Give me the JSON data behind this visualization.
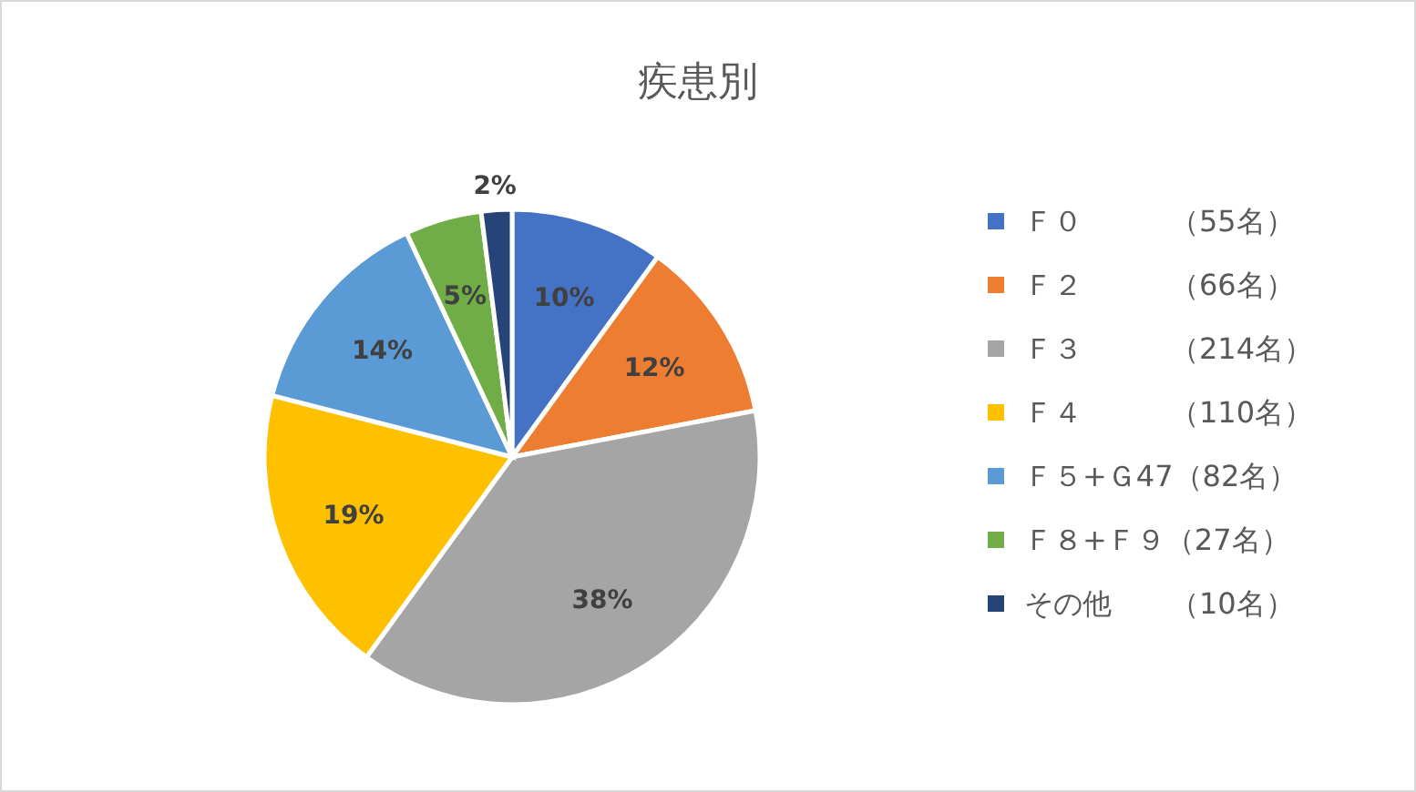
{
  "chart_data": {
    "type": "pie",
    "title": "疾患別",
    "categories": [
      "Ｆ０　　　（55名）",
      "Ｆ２　　　（66名）",
      "Ｆ３　　　（214名）",
      "Ｆ４　　　（110名）",
      "Ｆ５+Ｇ47（82名）",
      "Ｆ８+Ｆ９（27名）",
      "その他　　（10名）"
    ],
    "values": [
      10,
      12,
      38,
      19,
      14,
      5,
      2
    ],
    "value_labels": [
      "10%",
      "12%",
      "38%",
      "19%",
      "14%",
      "5%",
      "2%"
    ],
    "colors": [
      "#4472c4",
      "#ed7d31",
      "#a5a5a5",
      "#ffc000",
      "#5b9bd5",
      "#70ad47",
      "#264478"
    ],
    "legend": "right"
  }
}
